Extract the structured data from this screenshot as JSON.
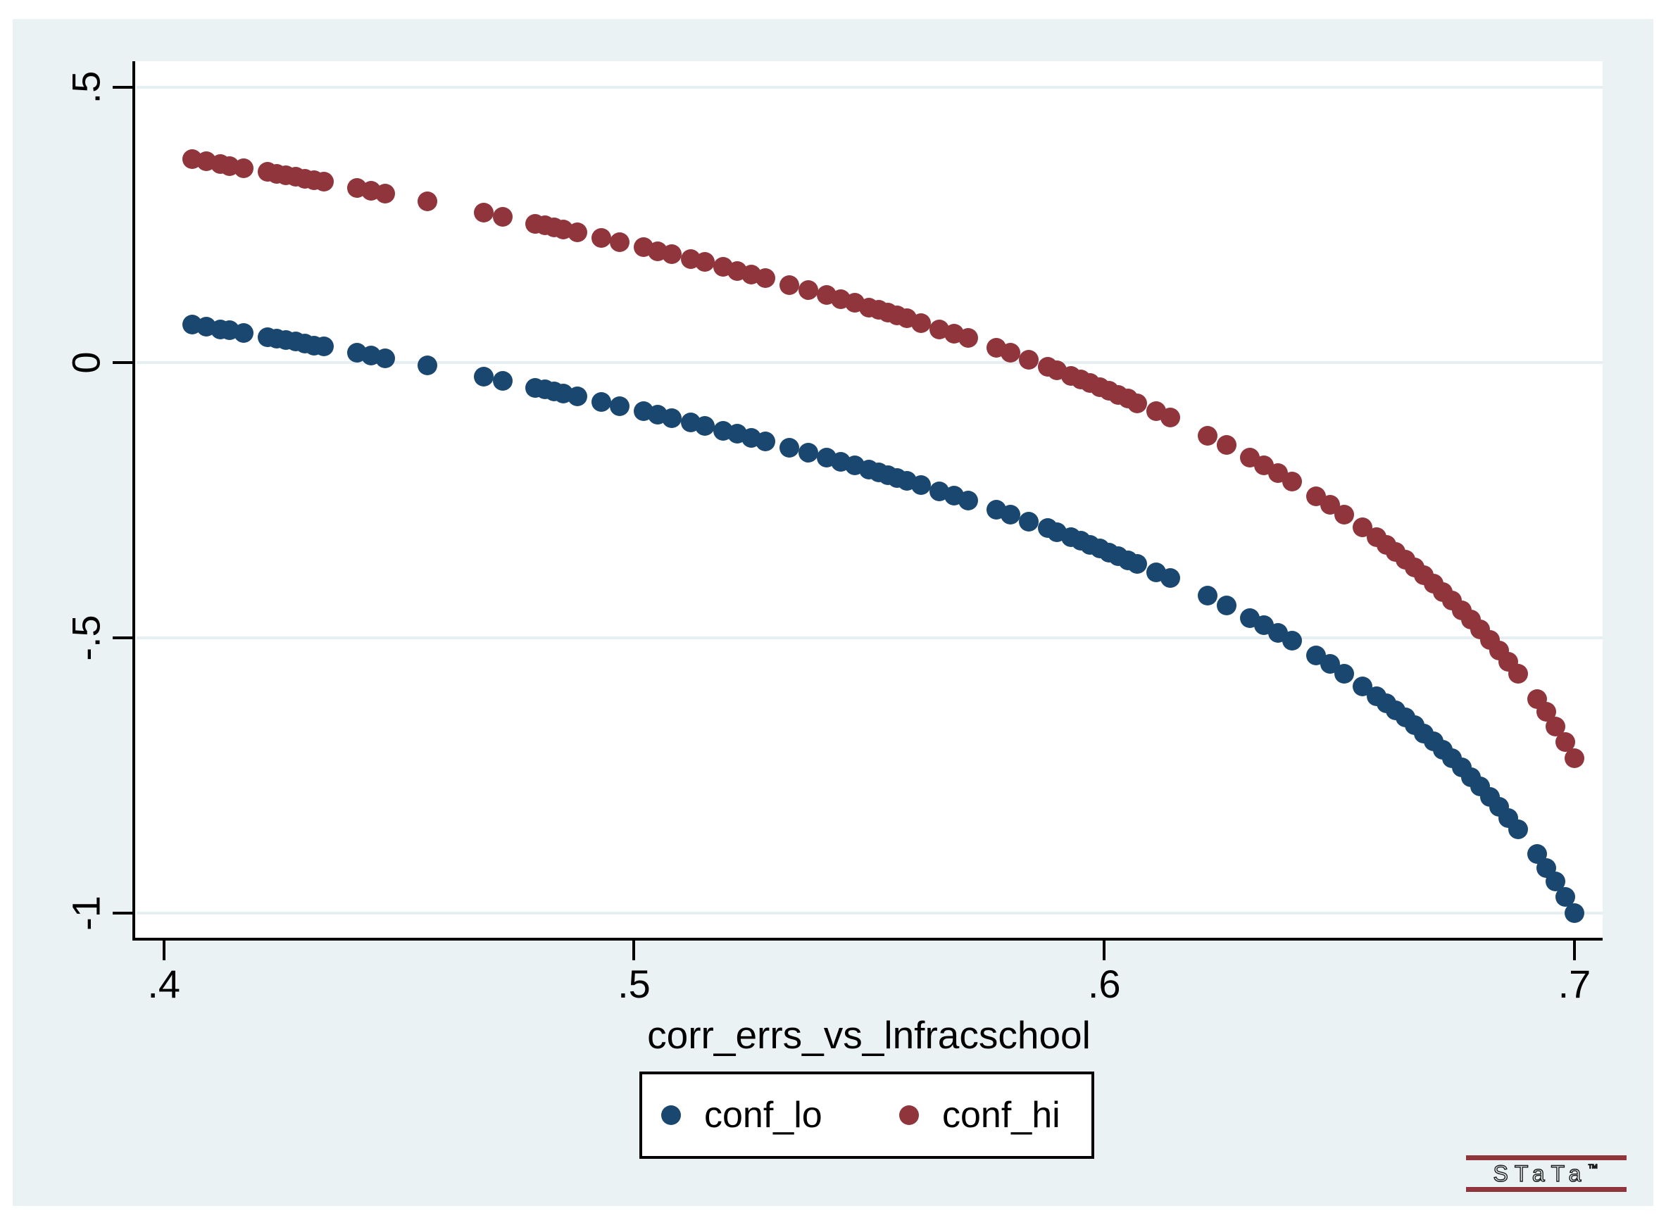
{
  "figure": {
    "background_color": "#eaf2f3",
    "plot_background": "#ffffff",
    "grid_color": "#e6f0f2",
    "axis_color": "#000000"
  },
  "branding": {
    "logo_text": "STaTa",
    "trademark": "™"
  },
  "chart_data": {
    "type": "scatter",
    "title": "",
    "xlabel": "corr_errs_vs_lnfracschool",
    "ylabel": "",
    "grid": "horizontal",
    "legend_position": "bottom-center",
    "xlim": [
      0.3939,
      0.706
    ],
    "ylim": [
      -1.045,
      0.547
    ],
    "xticks": [
      {
        "value": 0.4,
        "label": ".4"
      },
      {
        "value": 0.5,
        "label": ".5"
      },
      {
        "value": 0.6,
        "label": ".6"
      },
      {
        "value": 0.7,
        "label": ".7"
      }
    ],
    "yticks": [
      {
        "value": 0.5,
        "label": ".5"
      },
      {
        "value": 0,
        "label": "0"
      },
      {
        "value": -0.5,
        "label": "-.5"
      },
      {
        "value": -1,
        "label": "-1"
      }
    ],
    "x": [
      0.406,
      0.409,
      0.412,
      0.414,
      0.417,
      0.422,
      0.424,
      0.426,
      0.428,
      0.43,
      0.432,
      0.434,
      0.441,
      0.444,
      0.447,
      0.456,
      0.468,
      0.472,
      0.479,
      0.481,
      0.483,
      0.485,
      0.488,
      0.493,
      0.497,
      0.502,
      0.505,
      0.508,
      0.512,
      0.515,
      0.519,
      0.522,
      0.525,
      0.528,
      0.533,
      0.537,
      0.541,
      0.544,
      0.547,
      0.55,
      0.552,
      0.554,
      0.556,
      0.558,
      0.561,
      0.565,
      0.568,
      0.571,
      0.577,
      0.58,
      0.584,
      0.588,
      0.59,
      0.593,
      0.595,
      0.597,
      0.599,
      0.601,
      0.603,
      0.605,
      0.607,
      0.611,
      0.614,
      0.622,
      0.626,
      0.631,
      0.634,
      0.637,
      0.64,
      0.645,
      0.648,
      0.651,
      0.655,
      0.658,
      0.66,
      0.662,
      0.664,
      0.666,
      0.668,
      0.67,
      0.672,
      0.674,
      0.676,
      0.678,
      0.68,
      0.682,
      0.684,
      0.686,
      0.688,
      0.692,
      0.694,
      0.696,
      0.698,
      0.7
    ],
    "series": [
      {
        "name": "conf_lo",
        "color": "#1a476f",
        "values": [
          0.069,
          0.065,
          0.06,
          0.058,
          0.054,
          0.046,
          0.043,
          0.04,
          0.038,
          0.034,
          0.031,
          0.029,
          0.018,
          0.013,
          0.008,
          -0.006,
          -0.026,
          -0.033,
          -0.046,
          -0.049,
          -0.053,
          -0.056,
          -0.062,
          -0.072,
          -0.079,
          -0.089,
          -0.095,
          -0.101,
          -0.109,
          -0.115,
          -0.124,
          -0.13,
          -0.137,
          -0.143,
          -0.155,
          -0.164,
          -0.173,
          -0.18,
          -0.187,
          -0.195,
          -0.2,
          -0.205,
          -0.21,
          -0.215,
          -0.223,
          -0.234,
          -0.242,
          -0.251,
          -0.268,
          -0.277,
          -0.289,
          -0.301,
          -0.308,
          -0.318,
          -0.324,
          -0.331,
          -0.338,
          -0.345,
          -0.352,
          -0.359,
          -0.366,
          -0.381,
          -0.392,
          -0.424,
          -0.441,
          -0.464,
          -0.477,
          -0.491,
          -0.506,
          -0.532,
          -0.548,
          -0.565,
          -0.588,
          -0.606,
          -0.619,
          -0.632,
          -0.645,
          -0.659,
          -0.674,
          -0.688,
          -0.703,
          -0.719,
          -0.736,
          -0.753,
          -0.77,
          -0.789,
          -0.807,
          -0.828,
          -0.848,
          -0.893,
          -0.918,
          -0.943,
          -0.971,
          -1.0
        ]
      },
      {
        "name": "conf_hi",
        "color": "#90353b",
        "values": [
          0.369,
          0.365,
          0.36,
          0.357,
          0.353,
          0.346,
          0.343,
          0.34,
          0.337,
          0.334,
          0.331,
          0.328,
          0.317,
          0.312,
          0.307,
          0.292,
          0.272,
          0.265,
          0.252,
          0.249,
          0.245,
          0.241,
          0.236,
          0.226,
          0.218,
          0.209,
          0.202,
          0.196,
          0.188,
          0.182,
          0.173,
          0.166,
          0.16,
          0.153,
          0.141,
          0.132,
          0.123,
          0.115,
          0.108,
          0.1,
          0.095,
          0.09,
          0.085,
          0.08,
          0.071,
          0.06,
          0.052,
          0.044,
          0.026,
          0.017,
          0.005,
          -0.008,
          -0.014,
          -0.025,
          -0.031,
          -0.038,
          -0.045,
          -0.052,
          -0.059,
          -0.066,
          -0.074,
          -0.089,
          -0.1,
          -0.133,
          -0.15,
          -0.173,
          -0.187,
          -0.201,
          -0.216,
          -0.243,
          -0.259,
          -0.276,
          -0.3,
          -0.318,
          -0.331,
          -0.344,
          -0.358,
          -0.372,
          -0.387,
          -0.402,
          -0.417,
          -0.433,
          -0.45,
          -0.467,
          -0.485,
          -0.504,
          -0.523,
          -0.544,
          -0.565,
          -0.611,
          -0.635,
          -0.661,
          -0.689,
          -0.719
        ]
      }
    ]
  }
}
